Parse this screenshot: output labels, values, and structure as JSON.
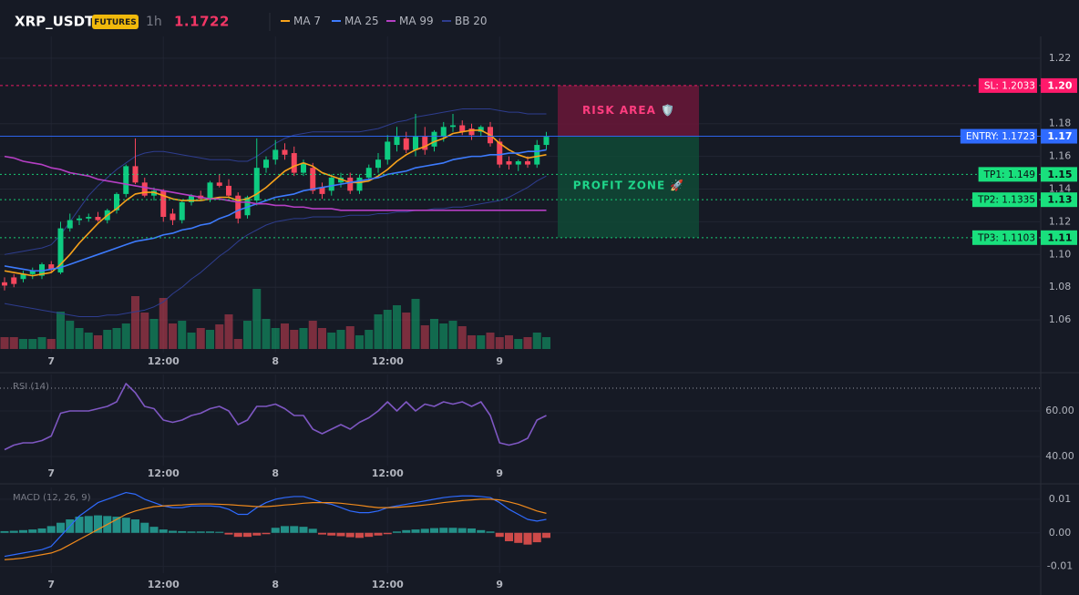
{
  "chart_data": [
    {
      "type": "candlestick",
      "title": "XRP_USDT",
      "badge": "FUTURES",
      "interval": "1h",
      "last_price": 1.1722,
      "categories": [
        null,
        null,
        null,
        null,
        null,
        "7",
        null,
        null,
        null,
        null,
        null,
        null,
        null,
        null,
        null,
        null,
        null,
        "12:00",
        null,
        null,
        null,
        null,
        null,
        null,
        null,
        null,
        null,
        null,
        null,
        "8",
        null,
        null,
        null,
        null,
        null,
        null,
        null,
        null,
        null,
        null,
        null,
        "12:00",
        null,
        null,
        null,
        null,
        null,
        null,
        null,
        null,
        null,
        null,
        null,
        "9",
        null,
        null,
        null,
        null,
        null
      ],
      "open": [
        1.083,
        1.086,
        1.085,
        1.088,
        1.087,
        1.094,
        1.089,
        1.116,
        1.121,
        1.122,
        1.123,
        1.121,
        1.127,
        1.137,
        1.154,
        1.144,
        1.136,
        1.139,
        1.125,
        1.121,
        1.132,
        1.136,
        1.134,
        1.144,
        1.142,
        1.136,
        1.124,
        1.133,
        1.153,
        1.158,
        1.164,
        1.162,
        1.15,
        1.153,
        1.141,
        1.139,
        1.144,
        1.147,
        1.139,
        1.147,
        1.153,
        1.158,
        1.167,
        1.171,
        1.164,
        1.172,
        1.166,
        1.172,
        1.178,
        1.179,
        1.177,
        1.175,
        1.178,
        1.169,
        1.157,
        1.155,
        1.157,
        1.155,
        1.167
      ],
      "high": [
        1.086,
        1.088,
        1.09,
        1.092,
        1.095,
        1.096,
        1.12,
        1.125,
        1.124,
        1.125,
        1.126,
        1.128,
        1.138,
        1.155,
        1.171,
        1.147,
        1.141,
        1.14,
        1.128,
        1.133,
        1.137,
        1.139,
        1.145,
        1.149,
        1.146,
        1.138,
        1.136,
        1.171,
        1.16,
        1.17,
        1.168,
        1.166,
        1.158,
        1.156,
        1.144,
        1.149,
        1.15,
        1.15,
        1.149,
        1.155,
        1.162,
        1.173,
        1.178,
        1.175,
        1.186,
        1.178,
        1.176,
        1.181,
        1.186,
        1.182,
        1.18,
        1.179,
        1.181,
        1.171,
        1.16,
        1.158,
        1.16,
        1.17,
        1.175
      ],
      "low": [
        1.078,
        1.08,
        1.083,
        1.085,
        1.085,
        1.089,
        1.088,
        1.114,
        1.118,
        1.12,
        1.12,
        1.119,
        1.125,
        1.135,
        1.143,
        1.135,
        1.133,
        1.12,
        1.118,
        1.119,
        1.13,
        1.133,
        1.132,
        1.141,
        1.135,
        1.119,
        1.122,
        1.13,
        1.15,
        1.155,
        1.158,
        1.148,
        1.148,
        1.137,
        1.134,
        1.136,
        1.141,
        1.137,
        1.137,
        1.145,
        1.15,
        1.155,
        1.163,
        1.162,
        1.16,
        1.161,
        1.163,
        1.169,
        1.175,
        1.173,
        1.17,
        1.172,
        1.166,
        1.153,
        1.152,
        1.151,
        1.153,
        1.153,
        1.164
      ],
      "close": [
        1.081,
        1.082,
        1.088,
        1.09,
        1.094,
        1.091,
        1.116,
        1.121,
        1.122,
        1.123,
        1.121,
        1.127,
        1.137,
        1.154,
        1.144,
        1.136,
        1.139,
        1.123,
        1.121,
        1.132,
        1.136,
        1.134,
        1.144,
        1.142,
        1.136,
        1.122,
        1.135,
        1.153,
        1.158,
        1.164,
        1.161,
        1.15,
        1.156,
        1.139,
        1.137,
        1.147,
        1.147,
        1.139,
        1.147,
        1.153,
        1.158,
        1.169,
        1.172,
        1.164,
        1.172,
        1.164,
        1.175,
        1.178,
        1.179,
        1.175,
        1.173,
        1.178,
        1.168,
        1.155,
        1.155,
        1.157,
        1.155,
        1.167,
        1.172
      ],
      "up_color": "#0ecb81",
      "down_color": "#f6465d",
      "volume": [
        13,
        13,
        11,
        11,
        13,
        11,
        41,
        31,
        23,
        18,
        15,
        21,
        23,
        28,
        58,
        40,
        33,
        56,
        28,
        31,
        18,
        23,
        21,
        27,
        38,
        11,
        31,
        66,
        33,
        23,
        28,
        21,
        23,
        31,
        23,
        18,
        21,
        25,
        15,
        21,
        38,
        43,
        48,
        40,
        55,
        26,
        33,
        28,
        31,
        25,
        15,
        15,
        18,
        13,
        15,
        11,
        13,
        18,
        13
      ],
      "volume_ylim": [
        0,
        100
      ],
      "series": [
        {
          "name": "MA 7",
          "color": "#f7a21b",
          "values": [
            1.09,
            1.089,
            1.088,
            1.087,
            1.088,
            1.089,
            1.094,
            1.1,
            1.107,
            1.113,
            1.119,
            1.124,
            1.128,
            1.133,
            1.137,
            1.138,
            1.138,
            1.136,
            1.134,
            1.133,
            1.133,
            1.133,
            1.134,
            1.135,
            1.135,
            1.133,
            1.134,
            1.137,
            1.141,
            1.146,
            1.151,
            1.154,
            1.156,
            1.154,
            1.15,
            1.148,
            1.146,
            1.144,
            1.144,
            1.145,
            1.148,
            1.152,
            1.157,
            1.161,
            1.164,
            1.166,
            1.169,
            1.171,
            1.174,
            1.175,
            1.176,
            1.176,
            1.173,
            1.168,
            1.164,
            1.161,
            1.159,
            1.16,
            1.161
          ]
        },
        {
          "name": "MA 25",
          "color": "#3d7bfd",
          "values": [
            1.093,
            1.092,
            1.091,
            1.09,
            1.09,
            1.091,
            1.092,
            1.094,
            1.096,
            1.098,
            1.1,
            1.102,
            1.104,
            1.106,
            1.108,
            1.109,
            1.11,
            1.112,
            1.113,
            1.115,
            1.116,
            1.118,
            1.119,
            1.122,
            1.124,
            1.127,
            1.129,
            1.131,
            1.133,
            1.135,
            1.136,
            1.137,
            1.139,
            1.14,
            1.141,
            1.142,
            1.143,
            1.144,
            1.145,
            1.146,
            1.147,
            1.149,
            1.15,
            1.151,
            1.153,
            1.154,
            1.155,
            1.156,
            1.158,
            1.159,
            1.16,
            1.16,
            1.161,
            1.161,
            1.162,
            1.162,
            1.163,
            1.163,
            1.164
          ]
        },
        {
          "name": "MA 99",
          "color": "#b53fc4",
          "values": [
            1.16,
            1.159,
            1.157,
            1.156,
            1.155,
            1.153,
            1.152,
            1.15,
            1.149,
            1.148,
            1.146,
            1.145,
            1.144,
            1.143,
            1.142,
            1.141,
            1.14,
            1.139,
            1.138,
            1.137,
            1.136,
            1.135,
            1.134,
            1.134,
            1.133,
            1.132,
            1.132,
            1.131,
            1.131,
            1.13,
            1.13,
            1.129,
            1.129,
            1.128,
            1.128,
            1.128,
            1.127,
            1.127,
            1.127,
            1.127,
            1.127,
            1.127,
            1.127,
            1.127,
            1.127,
            1.127,
            1.127,
            1.127,
            1.127,
            1.127,
            1.127,
            1.127,
            1.127,
            1.127,
            1.127,
            1.127,
            1.127,
            1.127,
            1.127
          ]
        },
        {
          "name": "BB 20",
          "color": "#2e3d8f",
          "upper": [
            1.1,
            1.101,
            1.102,
            1.103,
            1.104,
            1.106,
            1.112,
            1.12,
            1.128,
            1.136,
            1.142,
            1.147,
            1.152,
            1.156,
            1.16,
            1.162,
            1.163,
            1.163,
            1.162,
            1.161,
            1.16,
            1.159,
            1.158,
            1.158,
            1.158,
            1.157,
            1.157,
            1.16,
            1.164,
            1.168,
            1.171,
            1.173,
            1.174,
            1.175,
            1.175,
            1.175,
            1.175,
            1.175,
            1.175,
            1.176,
            1.177,
            1.179,
            1.181,
            1.182,
            1.184,
            1.185,
            1.186,
            1.187,
            1.188,
            1.189,
            1.189,
            1.189,
            1.189,
            1.188,
            1.187,
            1.187,
            1.186,
            1.186,
            1.186
          ],
          "lower": [
            1.07,
            1.069,
            1.068,
            1.067,
            1.066,
            1.065,
            1.064,
            1.063,
            1.062,
            1.062,
            1.062,
            1.063,
            1.063,
            1.064,
            1.065,
            1.066,
            1.068,
            1.071,
            1.076,
            1.08,
            1.085,
            1.089,
            1.094,
            1.099,
            1.103,
            1.108,
            1.112,
            1.115,
            1.118,
            1.12,
            1.121,
            1.122,
            1.122,
            1.123,
            1.123,
            1.123,
            1.123,
            1.124,
            1.124,
            1.124,
            1.125,
            1.125,
            1.126,
            1.126,
            1.127,
            1.127,
            1.128,
            1.128,
            1.129,
            1.129,
            1.13,
            1.131,
            1.132,
            1.133,
            1.135,
            1.138,
            1.141,
            1.145,
            1.148
          ]
        }
      ],
      "ylim": [
        1.04,
        1.235
      ],
      "yticks": [
        1.06,
        1.08,
        {
          "value": 1.1,
          "label": "1.10"
        },
        1.12,
        1.14,
        1.16,
        1.18,
        1.22
      ],
      "grid": true,
      "levels": [
        {
          "label": "SL: 1.2033",
          "value": 1.2033,
          "axis_label": "1.20",
          "color": "#ff1a6b",
          "text_color": "#ffffff",
          "style": "dashed"
        },
        {
          "label": "ENTRY: 1.1723",
          "value": 1.1723,
          "axis_label": "1.17",
          "color": "#2f6bff",
          "text_color": "#ffffff",
          "style": "solid"
        },
        {
          "label": "TP1: 1.149",
          "value": 1.149,
          "axis_label": "1.15",
          "color": "#19e07d",
          "text_color": "#0b0e14",
          "style": "dotted"
        },
        {
          "label": "TP2: 1.1335",
          "value": 1.1335,
          "axis_label": "1.13",
          "color": "#19e07d",
          "text_color": "#0b0e14",
          "style": "dotted"
        },
        {
          "label": "TP3: 1.1103",
          "value": 1.1103,
          "axis_label": "1.11",
          "color": "#19e07d",
          "text_color": "#0b0e14",
          "style": "dotted"
        }
      ],
      "zones": [
        {
          "label": "RISK AREA 🛡️",
          "from": 1.2033,
          "to": 1.1723,
          "color": "#6a1838",
          "text_color": "#ff3d7f"
        },
        {
          "label": "PROFIT ZONE 🚀",
          "from": 1.1723,
          "to": 1.1103,
          "color": "#0f4a36",
          "text_color": "#1fd68a"
        }
      ]
    },
    {
      "type": "line",
      "title": "RSI (14)",
      "values": [
        43,
        45,
        46,
        46,
        47,
        49,
        59,
        60,
        60,
        60,
        61,
        62,
        64,
        72,
        68,
        62,
        61,
        56,
        55,
        56,
        58,
        59,
        61,
        62,
        60,
        54,
        56,
        62,
        62,
        63,
        61,
        58,
        58,
        52,
        50,
        52,
        54,
        52,
        55,
        57,
        60,
        64,
        60,
        64,
        60,
        63,
        62,
        64,
        63,
        64,
        62,
        64,
        58,
        46,
        45,
        46,
        48,
        56,
        58
      ],
      "color": "#7e57c2",
      "overbought": 70,
      "ylim": [
        36,
        76
      ],
      "yticks": [
        {
          "value": 40,
          "label": "40.00"
        },
        {
          "value": 60,
          "label": "60.00"
        }
      ]
    },
    {
      "type": "macd",
      "title": "MACD (12, 26, 9)",
      "lines": [
        {
          "color": "#2f6bff",
          "values": [
            -0.007,
            -0.0065,
            -0.006,
            -0.0055,
            -0.005,
            -0.004,
            -0.001,
            0.002,
            0.005,
            0.007,
            0.009,
            0.01,
            0.011,
            0.012,
            0.0115,
            0.01,
            0.009,
            0.008,
            0.0075,
            0.0075,
            0.008,
            0.008,
            0.008,
            0.0078,
            0.007,
            0.0055,
            0.0055,
            0.0075,
            0.009,
            0.01,
            0.0105,
            0.0108,
            0.0108,
            0.01,
            0.009,
            0.0085,
            0.0075,
            0.0065,
            0.006,
            0.006,
            0.0065,
            0.0075,
            0.008,
            0.0085,
            0.009,
            0.0095,
            0.01,
            0.0105,
            0.0108,
            0.011,
            0.011,
            0.0108,
            0.0105,
            0.009,
            0.007,
            0.0055,
            0.004,
            0.0035,
            0.004
          ]
        },
        {
          "color": "#f08a1c",
          "values": [
            -0.008,
            -0.0078,
            -0.0075,
            -0.007,
            -0.0065,
            -0.006,
            -0.005,
            -0.0035,
            -0.002,
            -0.0005,
            0.001,
            0.0025,
            0.004,
            0.0055,
            0.0065,
            0.0072,
            0.0078,
            0.008,
            0.0082,
            0.0083,
            0.0085,
            0.0086,
            0.0086,
            0.0085,
            0.0084,
            0.0082,
            0.008,
            0.0078,
            0.0078,
            0.008,
            0.0083,
            0.0085,
            0.0088,
            0.009,
            0.009,
            0.009,
            0.0088,
            0.0085,
            0.0082,
            0.0078,
            0.0075,
            0.0075,
            0.0076,
            0.0078,
            0.008,
            0.0083,
            0.0086,
            0.009,
            0.0093,
            0.0096,
            0.0098,
            0.01,
            0.01,
            0.0098,
            0.0092,
            0.0085,
            0.0075,
            0.0065,
            0.0058
          ]
        }
      ],
      "histogram": {
        "up_color": "#26a69a",
        "down_color": "#ef5350",
        "values": [
          0.0005,
          0.0006,
          0.0008,
          0.001,
          0.0013,
          0.002,
          0.003,
          0.004,
          0.0048,
          0.005,
          0.0052,
          0.005,
          0.0048,
          0.0045,
          0.004,
          0.003,
          0.0018,
          0.001,
          0.0006,
          0.0005,
          0.0004,
          0.0004,
          0.0004,
          0.0003,
          -0.0005,
          -0.0012,
          -0.0012,
          -0.0008,
          -0.0004,
          0.0015,
          0.002,
          0.002,
          0.0018,
          0.0012,
          -0.0005,
          -0.0008,
          -0.001,
          -0.0013,
          -0.0015,
          -0.0012,
          -0.0008,
          -0.0004,
          0.0004,
          0.0008,
          0.001,
          0.0012,
          0.0014,
          0.0015,
          0.0015,
          0.0014,
          0.0013,
          0.0008,
          0.0004,
          -0.0012,
          -0.0025,
          -0.003,
          -0.0035,
          -0.0028,
          -0.0015
        ]
      },
      "ylim": [
        -0.012,
        0.0135
      ],
      "yticks": [
        0.01,
        {
          "value": 0,
          "label": "0.00"
        },
        {
          "value": -0.01,
          "label": "-0.01"
        }
      ]
    }
  ]
}
